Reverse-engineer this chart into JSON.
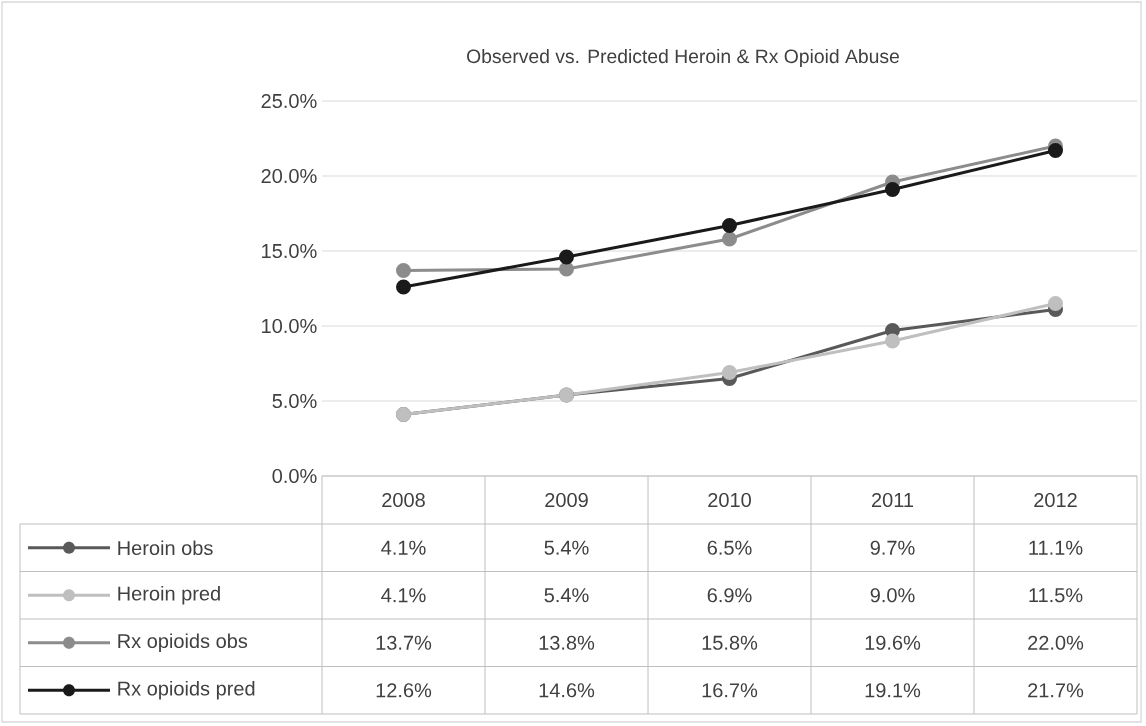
{
  "chart_data": {
    "type": "line",
    "title": "Observed vs. Predicted Heroin & Rx Opioid Abuse",
    "categories": [
      "2008",
      "2009",
      "2010",
      "2011",
      "2012"
    ],
    "series": [
      {
        "name": "Heroin obs",
        "color": "#595959",
        "values": [
          4.1,
          5.4,
          6.5,
          9.7,
          11.1
        ],
        "value_labels": [
          "4.1%",
          "5.4%",
          "6.5%",
          "9.7%",
          "11.1%"
        ]
      },
      {
        "name": "Heroin pred",
        "color": "#bfbfbf",
        "values": [
          4.1,
          5.4,
          6.9,
          9.0,
          11.5
        ],
        "value_labels": [
          "4.1%",
          "5.4%",
          "6.9%",
          "9.0%",
          "11.5%"
        ]
      },
      {
        "name": "Rx opioids obs",
        "color": "#8c8c8c",
        "values": [
          13.7,
          13.8,
          15.8,
          19.6,
          22.0
        ],
        "value_labels": [
          "13.7%",
          "13.8%",
          "15.8%",
          "19.6%",
          "22.0%"
        ]
      },
      {
        "name": "Rx opioids pred",
        "color": "#1a1a1a",
        "values": [
          12.6,
          14.6,
          16.7,
          19.1,
          21.7
        ],
        "value_labels": [
          "12.6%",
          "14.6%",
          "16.7%",
          "19.1%",
          "21.7%"
        ]
      }
    ],
    "ylim": [
      0,
      25
    ],
    "yticks": [
      {
        "value": 0,
        "label": "0.0%"
      },
      {
        "value": 5,
        "label": "5.0%"
      },
      {
        "value": 10,
        "label": "10.0%"
      },
      {
        "value": 15,
        "label": "15.0%"
      },
      {
        "value": 20,
        "label": "20.0%"
      },
      {
        "value": 25,
        "label": "25.0%"
      }
    ],
    "grid": "y",
    "legend": "bottom",
    "marker": "circle",
    "line_style": "solid"
  }
}
